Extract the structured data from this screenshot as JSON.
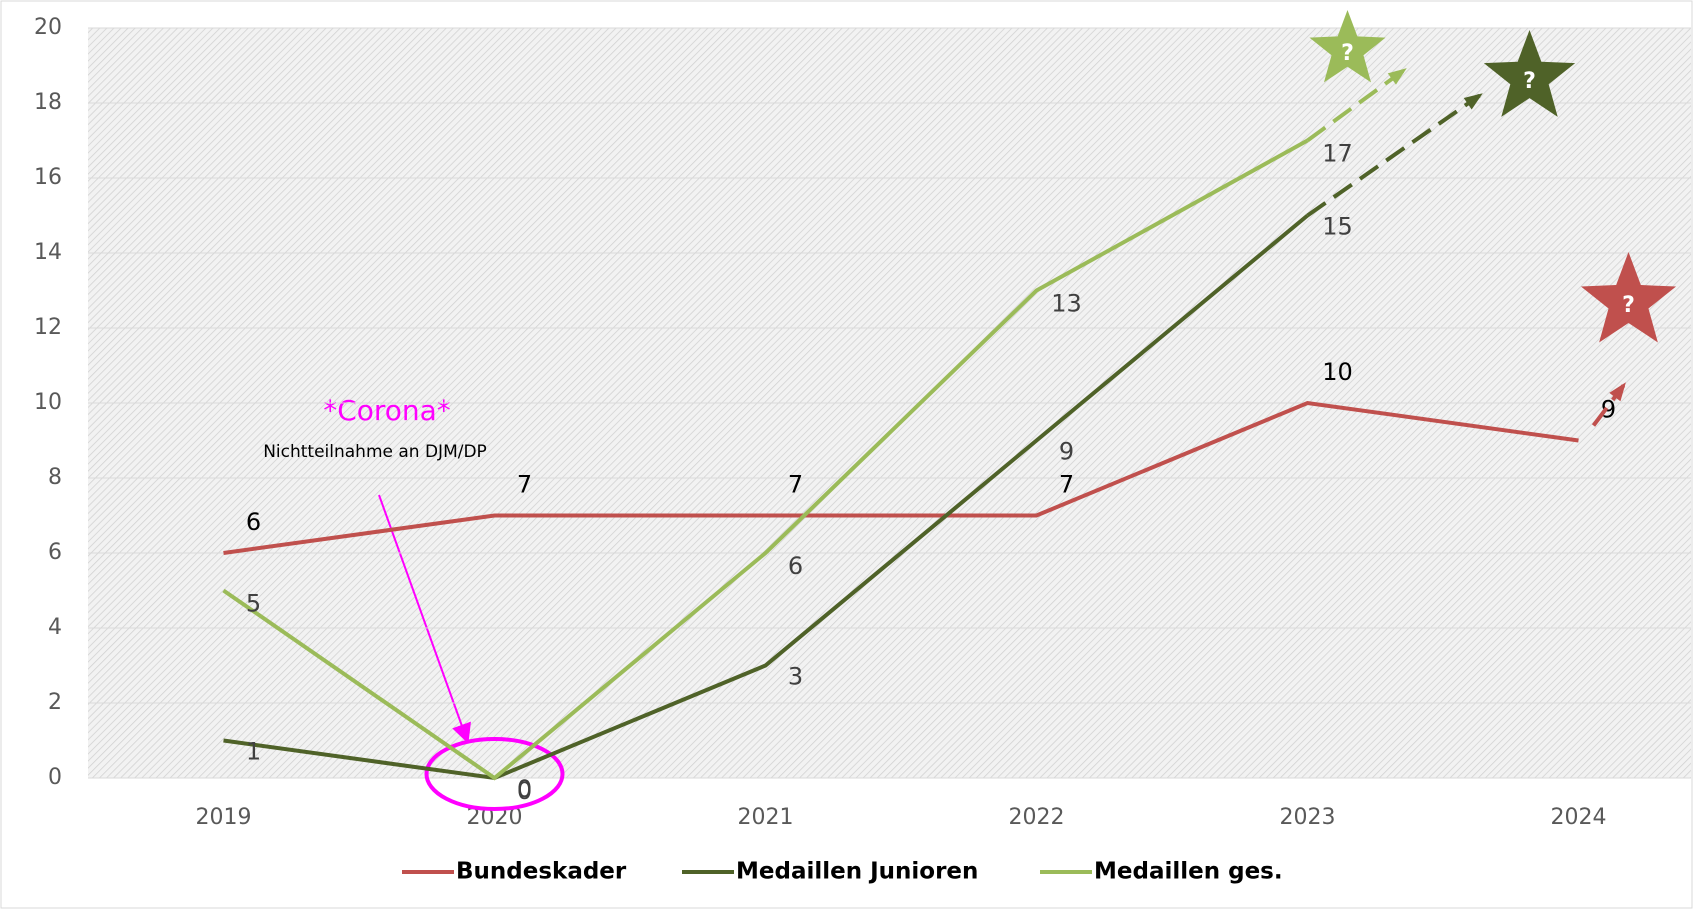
{
  "chart_data": {
    "type": "line",
    "categories": [
      "2019",
      "2020",
      "2021",
      "2022",
      "2023",
      "2024"
    ],
    "series": [
      {
        "name": "Bundeskader",
        "color": "#c0504d",
        "values": [
          6,
          7,
          7,
          7,
          10,
          9
        ]
      },
      {
        "name": "Medaillen Junioren",
        "color": "#4f6228",
        "values": [
          1,
          0,
          3,
          9,
          15,
          null
        ]
      },
      {
        "name": "Medaillen ges.",
        "color": "#9bbb59",
        "values": [
          5,
          0,
          6,
          13,
          17,
          null
        ]
      }
    ],
    "ylim": [
      0,
      20
    ],
    "yticks": [
      0,
      2,
      4,
      6,
      8,
      10,
      12,
      14,
      16,
      18,
      20
    ],
    "grid": true,
    "legend": "bottom",
    "annotations": [
      "*Corona*",
      "Nichtteilnahme an DJM/DP"
    ],
    "forecast_labels": [
      "?",
      "?",
      "?"
    ]
  }
}
